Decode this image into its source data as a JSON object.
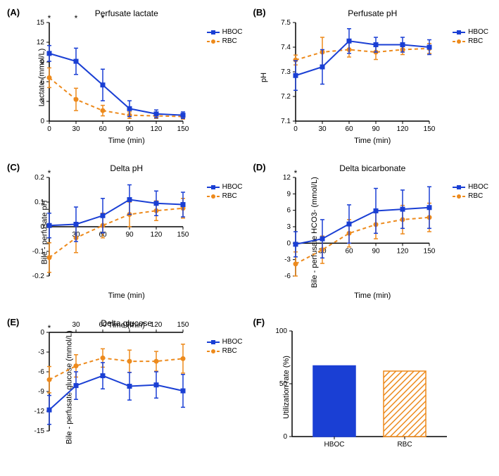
{
  "colors": {
    "hboc": "#1a3fd4",
    "rbc": "#ed8a1c",
    "axis": "#000000",
    "background": "#ffffff"
  },
  "line_width": 2,
  "marker_size": 5,
  "font_size_title": 12,
  "font_size_label": 11,
  "font_size_tick": 10,
  "panels": {
    "A": {
      "label": "(A)",
      "title": "Perfusate lactate",
      "ylabel": "Lactate (mmol/L)",
      "xlabel": "Time (min)",
      "xlim": [
        0,
        150
      ],
      "xticks": [
        0,
        30,
        60,
        90,
        120,
        150
      ],
      "ylim": [
        0,
        15
      ],
      "yticks": [
        0,
        3,
        6,
        9,
        12,
        15
      ],
      "stars": [
        0,
        30,
        60
      ],
      "hboc": {
        "x": [
          0,
          30,
          60,
          90,
          120,
          150
        ],
        "y": [
          10.3,
          9.1,
          5.5,
          1.9,
          1.1,
          0.9
        ],
        "err": [
          1.2,
          2.0,
          2.4,
          1.2,
          0.6,
          0.5
        ]
      },
      "rbc": {
        "x": [
          0,
          30,
          60,
          90,
          120,
          150
        ],
        "y": [
          6.6,
          3.3,
          1.6,
          0.9,
          0.8,
          0.7
        ],
        "err": [
          1.5,
          1.7,
          0.8,
          0.5,
          0.4,
          0.4
        ]
      }
    },
    "B": {
      "label": "(B)",
      "title": "Perfusate pH",
      "ylabel": "pH",
      "xlabel": "Time (min)",
      "xlim": [
        0,
        150
      ],
      "xticks": [
        0,
        30,
        60,
        90,
        120,
        150
      ],
      "ylim": [
        7.1,
        7.5
      ],
      "yticks": [
        7.1,
        7.2,
        7.3,
        7.4,
        7.5
      ],
      "stars": [],
      "hboc": {
        "x": [
          0,
          30,
          60,
          90,
          120,
          150
        ],
        "y": [
          7.285,
          7.32,
          7.425,
          7.41,
          7.41,
          7.4
        ],
        "err": [
          0.06,
          0.07,
          0.05,
          0.03,
          0.03,
          0.03
        ]
      },
      "rbc": {
        "x": [
          0,
          30,
          60,
          90,
          120,
          150
        ],
        "y": [
          7.348,
          7.38,
          7.39,
          7.38,
          7.39,
          7.395
        ],
        "err": [
          0.02,
          0.06,
          0.03,
          0.03,
          0.02,
          0.02
        ]
      }
    },
    "C": {
      "label": "(C)",
      "title": "Delta pH",
      "ylabel": "Bile - perfusate pH",
      "xlabel": "Time (min)",
      "zero_axis": true,
      "xlim": [
        0,
        150
      ],
      "xticks": [
        30,
        60,
        90,
        120,
        150
      ],
      "ylim": [
        -0.2,
        0.2
      ],
      "yticks": [
        -0.2,
        -0.1,
        0,
        0.1,
        0.2
      ],
      "stars": [
        0
      ],
      "hboc": {
        "x": [
          0,
          30,
          60,
          90,
          120,
          150
        ],
        "y": [
          0.005,
          0.01,
          0.045,
          0.11,
          0.095,
          0.09
        ],
        "err": [
          0.05,
          0.07,
          0.07,
          0.06,
          0.05,
          0.05
        ]
      },
      "rbc": {
        "x": [
          0,
          30,
          60,
          90,
          120,
          150
        ],
        "y": [
          -0.125,
          -0.045,
          0.005,
          0.05,
          0.065,
          0.075
        ],
        "err": [
          0.06,
          0.06,
          0.05,
          0.05,
          0.04,
          0.04
        ]
      }
    },
    "D": {
      "label": "(D)",
      "title": "Delta bicarbonate",
      "ylabel": "Bile - perfusate HCO3- (mmol/L)",
      "xlabel": "Time (min)",
      "zero_axis": true,
      "xlim": [
        0,
        150
      ],
      "xticks": [
        30,
        60,
        90,
        120,
        150
      ],
      "ylim": [
        -6,
        12
      ],
      "yticks": [
        -6,
        -3,
        0,
        3,
        6,
        9,
        12
      ],
      "stars": [
        0
      ],
      "hboc": {
        "x": [
          0,
          30,
          60,
          90,
          120,
          150
        ],
        "y": [
          -0.2,
          0.8,
          3.5,
          5.9,
          6.2,
          6.5
        ],
        "err": [
          2.3,
          3.5,
          3.5,
          4.1,
          3.5,
          3.8
        ]
      },
      "rbc": {
        "x": [
          0,
          30,
          60,
          90,
          120,
          150
        ],
        "y": [
          -3.8,
          -1.2,
          1.8,
          3.4,
          4.3,
          4.7
        ],
        "err": [
          2.2,
          2.5,
          2.5,
          2.6,
          2.6,
          2.6
        ]
      }
    },
    "E": {
      "label": "(E)",
      "title": "Delta glucose",
      "ylabel": "Bile - perfusate glucose (mmol/L)",
      "xlabel": "Time (min)",
      "axis_top": true,
      "xlim": [
        0,
        150
      ],
      "xticks": [
        30,
        60,
        90,
        120,
        150
      ],
      "ylim": [
        -15,
        0
      ],
      "yticks": [
        -15,
        -12,
        -9,
        -6,
        -3,
        0
      ],
      "stars": [
        0
      ],
      "hboc": {
        "x": [
          0,
          30,
          60,
          90,
          120,
          150
        ],
        "y": [
          -11.8,
          -8.1,
          -6.6,
          -8.2,
          -8.0,
          -8.9
        ],
        "err": [
          2.2,
          2.1,
          2.0,
          2.1,
          2.0,
          2.5
        ]
      },
      "rbc": {
        "x": [
          0,
          30,
          60,
          90,
          120,
          150
        ],
        "y": [
          -7.2,
          -5.1,
          -3.9,
          -4.4,
          -4.4,
          -4.0
        ],
        "err": [
          2.0,
          1.7,
          1.4,
          1.7,
          1.5,
          2.2
        ]
      }
    },
    "F": {
      "label": "(F)",
      "type": "bar",
      "ylabel": "Utilization rate (%)",
      "ylim": [
        0,
        100
      ],
      "yticks": [
        0,
        50,
        100
      ],
      "categories": [
        "HBOC",
        "RBC"
      ],
      "values": [
        67,
        62
      ],
      "bar_colors": [
        "#1a3fd4",
        "#ed8a1c"
      ],
      "rbc_hatched": true
    }
  },
  "legend": {
    "hboc_label": "HBOC",
    "rbc_label": "RBC"
  }
}
